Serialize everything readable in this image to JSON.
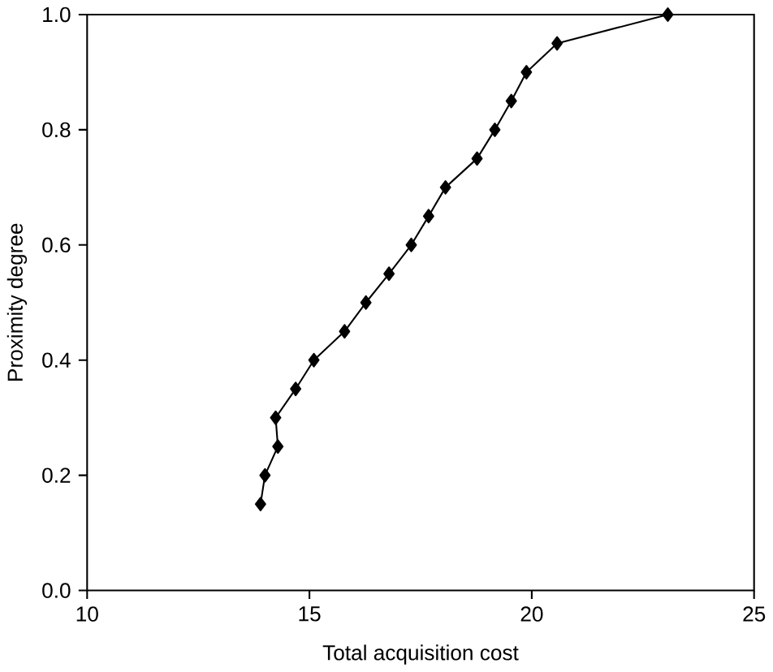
{
  "chart_data": {
    "type": "line",
    "xlabel": "Total acquisition cost",
    "ylabel": "Proximity degree",
    "xlim": [
      10,
      25
    ],
    "xticks": [
      10,
      15,
      20,
      25
    ],
    "ylim": [
      0.0,
      1.0
    ],
    "yticks": [
      {
        "value": 0,
        "label": "0.0"
      },
      {
        "value": 0.2,
        "label": "0.2"
      },
      {
        "value": 0.4,
        "label": "0.4"
      },
      {
        "value": 0.6,
        "label": "0.6"
      },
      {
        "value": 0.8,
        "label": "0.8"
      },
      {
        "value": 1.0,
        "label": "1.0"
      }
    ],
    "marker": "diamond",
    "grid": false,
    "series": [
      {
        "color": "#000000",
        "x": [
          13.9,
          14.0,
          14.29,
          14.24,
          14.69,
          15.1,
          15.79,
          16.27,
          16.79,
          17.29,
          17.68,
          18.06,
          18.77,
          19.17,
          19.54,
          19.88,
          20.57,
          23.06
        ],
        "values": [
          0.15,
          0.2,
          0.25,
          0.3,
          0.35,
          0.4,
          0.45,
          0.5,
          0.55,
          0.6,
          0.65,
          0.7,
          0.75,
          0.8,
          0.85,
          0.9,
          0.95,
          1.0
        ]
      }
    ]
  }
}
